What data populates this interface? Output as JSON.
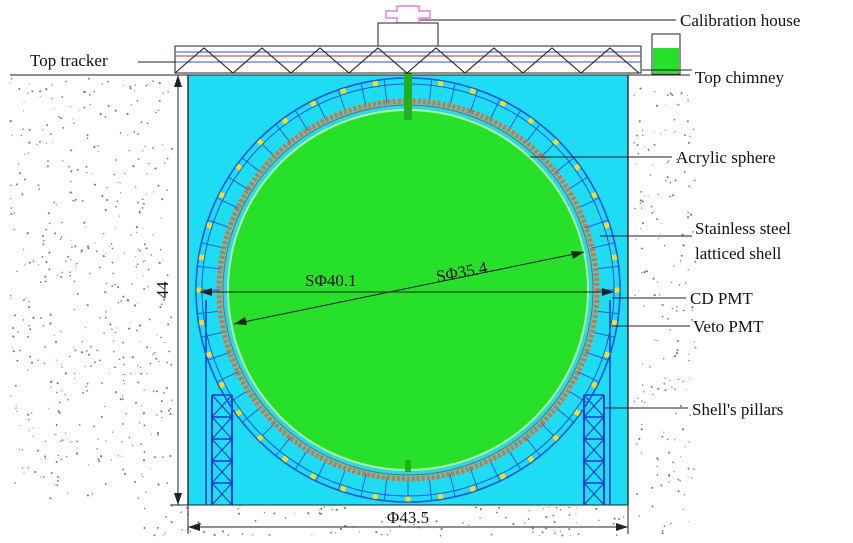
{
  "labels": {
    "calibration_house": "Calibration house",
    "top_tracker": "Top tracker",
    "top_chimney": "Top chimney",
    "acrylic_sphere": "Acrylic sphere",
    "stainless_steel_line1": "Stainless steel",
    "stainless_steel_line2": "latticed shell",
    "cd_pmt": "CD PMT",
    "veto_pmt": "Veto PMT",
    "shells_pillars": "Shell's pillars"
  },
  "dimensions": {
    "height": "44",
    "outer_sphere": "SΦ40.1",
    "inner_sphere": "SΦ35.4",
    "pool_diameter": "Φ43.5"
  },
  "colors": {
    "water_pool": "#1fdcf5",
    "acrylic_sphere": "#26e02a",
    "pmt_ring": "#e07030",
    "latticed_shell": "#2050e0",
    "veto_pmt": "#f0e020",
    "calibration_house": "#e060e0",
    "chimney": "#20b020",
    "pillars": "#1a3ad0",
    "rock_dots": "#777777"
  }
}
